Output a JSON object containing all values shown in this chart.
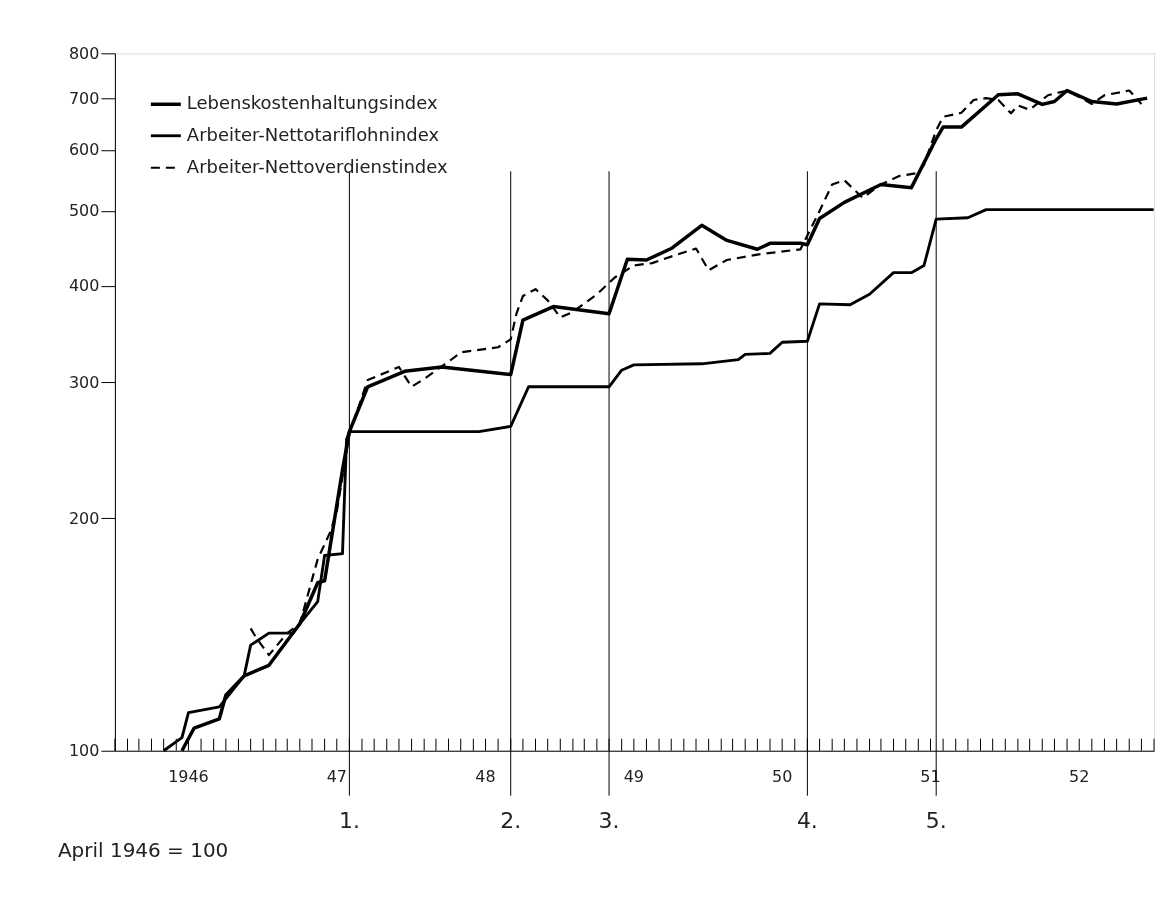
{
  "chart_data": {
    "type": "line",
    "log": "y",
    "grid": false,
    "legend": "top left",
    "xlim": [
      "1946-01-01",
      "1953-01-01"
    ],
    "ylim": [
      100,
      800
    ],
    "yticks": [
      100,
      200,
      300,
      400,
      500,
      600,
      700,
      800
    ],
    "xticks": [
      {
        "value": "1946-01",
        "label": null
      },
      {
        "value": "1946-02",
        "label": null
      },
      {
        "value": "1946-03",
        "label": null
      },
      {
        "value": "1946-04",
        "label": null
      },
      {
        "value": "1946-05",
        "label": null
      },
      {
        "value": "1946-06",
        "label": null
      },
      {
        "value": "1946-07",
        "label": "1946"
      },
      {
        "value": "1946-08",
        "label": null
      },
      {
        "value": "1946-09",
        "label": null
      },
      {
        "value": "1946-10",
        "label": null
      },
      {
        "value": "1946-11",
        "label": null
      },
      {
        "value": "1946-12",
        "label": null
      },
      {
        "value": "1947-01",
        "label": null
      },
      {
        "value": "1947-02",
        "label": null
      },
      {
        "value": "1947-03",
        "label": null
      },
      {
        "value": "1947-04",
        "label": null
      },
      {
        "value": "1947-05",
        "label": null
      },
      {
        "value": "1947-06",
        "label": null
      },
      {
        "value": "1947-07",
        "label": "47"
      },
      {
        "value": "1947-08",
        "label": null
      },
      {
        "value": "1947-09",
        "label": null
      },
      {
        "value": "1947-10",
        "label": null
      },
      {
        "value": "1947-11",
        "label": null
      },
      {
        "value": "1947-12",
        "label": null
      },
      {
        "value": "1948-01",
        "label": null
      },
      {
        "value": "1948-02",
        "label": null
      },
      {
        "value": "1948-03",
        "label": null
      },
      {
        "value": "1948-04",
        "label": null
      },
      {
        "value": "1948-05",
        "label": null
      },
      {
        "value": "1948-06",
        "label": null
      },
      {
        "value": "1948-07",
        "label": "48"
      },
      {
        "value": "1948-08",
        "label": null
      },
      {
        "value": "1948-09",
        "label": null
      },
      {
        "value": "1948-10",
        "label": null
      },
      {
        "value": "1948-11",
        "label": null
      },
      {
        "value": "1948-12",
        "label": null
      },
      {
        "value": "1949-01",
        "label": null
      },
      {
        "value": "1949-02",
        "label": null
      },
      {
        "value": "1949-03",
        "label": null
      },
      {
        "value": "1949-04",
        "label": null
      },
      {
        "value": "1949-05",
        "label": null
      },
      {
        "value": "1949-06",
        "label": null
      },
      {
        "value": "1949-07",
        "label": "49"
      },
      {
        "value": "1949-08",
        "label": null
      },
      {
        "value": "1949-09",
        "label": null
      },
      {
        "value": "1949-10",
        "label": null
      },
      {
        "value": "1949-11",
        "label": null
      },
      {
        "value": "1949-12",
        "label": null
      },
      {
        "value": "1950-01",
        "label": null
      },
      {
        "value": "1950-02",
        "label": null
      },
      {
        "value": "1950-03",
        "label": null
      },
      {
        "value": "1950-04",
        "label": null
      },
      {
        "value": "1950-05",
        "label": null
      },
      {
        "value": "1950-06",
        "label": null
      },
      {
        "value": "1950-07",
        "label": "50"
      },
      {
        "value": "1950-08",
        "label": null
      },
      {
        "value": "1950-09",
        "label": null
      },
      {
        "value": "1950-10",
        "label": null
      },
      {
        "value": "1950-11",
        "label": null
      },
      {
        "value": "1950-12",
        "label": null
      },
      {
        "value": "1951-01",
        "label": null
      },
      {
        "value": "1951-02",
        "label": null
      },
      {
        "value": "1951-03",
        "label": null
      },
      {
        "value": "1951-04",
        "label": null
      },
      {
        "value": "1951-05",
        "label": null
      },
      {
        "value": "1951-06",
        "label": null
      },
      {
        "value": "1951-07",
        "label": "51"
      },
      {
        "value": "1951-08",
        "label": null
      },
      {
        "value": "1951-09",
        "label": null
      },
      {
        "value": "1951-10",
        "label": null
      },
      {
        "value": "1951-11",
        "label": null
      },
      {
        "value": "1951-12",
        "label": null
      },
      {
        "value": "1952-01",
        "label": null
      },
      {
        "value": "1952-02",
        "label": null
      },
      {
        "value": "1952-03",
        "label": null
      },
      {
        "value": "1952-04",
        "label": null
      },
      {
        "value": "1952-05",
        "label": null
      },
      {
        "value": "1952-06",
        "label": null
      },
      {
        "value": "1952-07",
        "label": "52"
      },
      {
        "value": "1952-08",
        "label": null
      },
      {
        "value": "1952-09",
        "label": null
      },
      {
        "value": "1952-10",
        "label": null
      },
      {
        "value": "1952-11",
        "label": null
      },
      {
        "value": "1952-12",
        "label": null
      },
      {
        "value": "1953-01",
        "label": null
      }
    ],
    "series": [
      {
        "name": "Lebenskostenhaltungsindex",
        "color": "#000000",
        "line_style": "solid",
        "x": [
          "1946-06-15",
          "1946-07-15",
          "1946-09-15",
          "1946-10-01",
          "1946-11-15",
          "1947-01-15",
          "1947-04-01",
          "1947-05-15",
          "1947-06-01",
          "1947-07-15",
          "1947-08-01",
          "1947-09-15",
          "1947-12-15",
          "1948-03-15",
          "1948-09-01",
          "1948-10-01",
          "1948-12-15",
          "1949-05-01",
          "1949-06-15",
          "1949-08-01",
          "1949-10-01",
          "1949-12-15",
          "1950-02-15",
          "1950-05-01",
          "1950-06-01",
          "1950-08-15",
          "1950-09-01",
          "1950-10-01",
          "1950-12-01",
          "1951-03-01",
          "1951-05-15",
          "1951-07-15",
          "1951-08-01",
          "1951-09-15",
          "1951-12-15",
          "1952-02-01",
          "1952-04-01",
          "1952-05-01",
          "1952-06-01",
          "1952-08-01",
          "1952-10-01",
          "1952-12-15"
        ],
        "values": [
          100,
          107,
          110,
          118,
          125,
          129,
          146,
          165,
          166,
          231,
          259,
          296,
          310,
          314,
          307,
          361,
          376,
          368,
          433,
          432,
          447,
          479,
          458,
          446,
          454,
          454,
          452,
          489,
          513,
          541,
          536,
          620,
          642,
          642,
          707,
          709,
          687,
          693,
          716,
          693,
          688,
          700
        ]
      },
      {
        "name": "Arbeiter-Nettotariflohnindex",
        "color": "#000000",
        "line_style": "solid",
        "x": [
          "1946-05-01",
          "1946-06-15",
          "1946-07-01",
          "1946-09-15",
          "1946-11-15",
          "1946-12-01",
          "1947-01-15",
          "1947-03-15",
          "1947-04-01",
          "1947-05-15",
          "1947-06-01",
          "1947-07-15",
          "1947-07-25",
          "1947-08-01",
          "1948-06-15",
          "1948-09-01",
          "1948-10-15",
          "1949-05-01",
          "1949-06-01",
          "1949-07-01",
          "1949-12-15",
          "1950-03-15",
          "1950-04-01",
          "1950-06-01",
          "1950-07-01",
          "1950-09-01",
          "1950-10-01",
          "1950-12-15",
          "1951-02-01",
          "1951-04-01",
          "1951-05-15",
          "1951-06-15",
          "1951-07-15",
          "1951-10-01",
          "1951-11-15",
          "1952-12-31"
        ],
        "values": [
          100,
          104,
          112,
          114,
          125,
          137,
          142,
          142,
          146,
          156,
          179,
          180,
          253,
          259,
          259,
          263,
          296,
          296,
          311,
          316,
          317,
          321,
          326,
          327,
          338,
          339,
          379,
          378,
          390,
          416,
          416,
          425,
          488,
          490,
          502,
          502
        ]
      },
      {
        "name": "Arbeiter-Nettoverdienstindex",
        "color": "#000000",
        "line_style": "dashed",
        "x": [
          "1946-12-01",
          "1946-12-15",
          "1947-01-15",
          "1947-03-01",
          "1947-04-01",
          "1947-05-15",
          "1947-06-15",
          "1947-07-01",
          "1947-08-01",
          "1947-09-15",
          "1947-12-01",
          "1948-01-01",
          "1948-02-01",
          "1948-04-01",
          "1948-05-01",
          "1948-08-01",
          "1948-09-01",
          "1948-09-15",
          "1948-10-01",
          "1948-11-01",
          "1948-12-01",
          "1949-01-01",
          "1949-02-01",
          "1949-04-01",
          "1949-05-15",
          "1949-07-01",
          "1949-08-15",
          "1949-10-15",
          "1949-12-01",
          "1950-01-01",
          "1950-02-15",
          "1950-05-01",
          "1950-06-15",
          "1950-08-15",
          "1950-10-01",
          "1950-11-01",
          "1950-12-01",
          "1951-01-15",
          "1951-03-01",
          "1951-04-15",
          "1951-06-01",
          "1951-06-15",
          "1951-07-15",
          "1951-08-01",
          "1951-09-15",
          "1951-10-15",
          "1951-11-15",
          "1951-12-15",
          "1952-01-15",
          "1952-02-01",
          "1952-03-01",
          "1952-04-15",
          "1952-06-01",
          "1952-08-01",
          "1952-09-01",
          "1952-11-01",
          "1952-12-01"
        ],
        "values": [
          144,
          140,
          133,
          142,
          146,
          177,
          192,
          204,
          257,
          302,
          314,
          296,
          303,
          319,
          328,
          333,
          341,
          368,
          388,
          396,
          383,
          364,
          370,
          390,
          410,
          425,
          428,
          439,
          447,
          419,
          432,
          439,
          442,
          446,
          500,
          541,
          548,
          520,
          541,
          555,
          560,
          574,
          636,
          662,
          670,
          696,
          700,
          696,
          669,
          685,
          676,
          706,
          716,
          688,
          706,
          716,
          688
        ]
      }
    ],
    "ref_lines": [
      {
        "axis": "x",
        "value": "1947-08-01",
        "label": "1."
      },
      {
        "axis": "x",
        "value": "1948-09-01",
        "label": "2."
      },
      {
        "axis": "x",
        "value": "1949-05-01",
        "label": "3."
      },
      {
        "axis": "x",
        "value": "1950-09-01",
        "label": "4."
      },
      {
        "axis": "x",
        "value": "1951-07-15",
        "label": "5."
      }
    ],
    "annotations": [
      "April 1946 = 100"
    ]
  }
}
